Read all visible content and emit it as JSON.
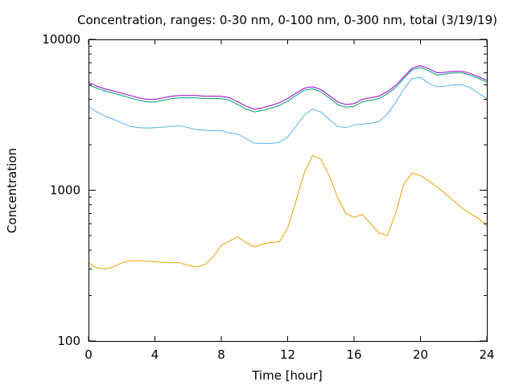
{
  "chart_data": {
    "type": "line",
    "title": "Concentration, ranges: 0-30 nm, 0-100 nm, 0-300 nm, total (3/19/19)",
    "xlabel": "Time [hour]",
    "ylabel": "Concentration",
    "xlim": [
      0,
      24
    ],
    "ylim": [
      100,
      10000
    ],
    "yscale": "log",
    "grid": false,
    "legend": "none",
    "x_ticks": [
      "0",
      "4",
      "8",
      "12",
      "16",
      "20",
      "24"
    ],
    "y_ticks": [
      "100",
      "1000",
      "10000"
    ],
    "x": [
      0,
      0.5,
      1,
      1.5,
      2,
      2.5,
      3,
      3.5,
      4,
      4.5,
      5,
      5.5,
      6,
      6.5,
      7,
      7.5,
      8,
      8.5,
      9,
      9.5,
      10,
      10.5,
      11,
      11.5,
      12,
      12.5,
      13,
      13.5,
      14,
      14.5,
      15,
      15.5,
      16,
      16.5,
      17,
      17.5,
      18,
      18.5,
      19,
      19.5,
      20,
      20.5,
      21,
      21.5,
      22,
      22.5,
      23,
      23.5,
      24
    ],
    "series": [
      {
        "color": "#e6a000",
        "values": [
          330,
          305,
          300,
          310,
          330,
          340,
          340,
          338,
          335,
          332,
          330,
          330,
          318,
          310,
          320,
          360,
          430,
          460,
          490,
          450,
          420,
          440,
          450,
          455,
          560,
          850,
          1300,
          1700,
          1600,
          1250,
          900,
          700,
          660,
          690,
          600,
          520,
          500,
          700,
          1100,
          1300,
          1250,
          1150,
          1050,
          950,
          850,
          760,
          700,
          650,
          580
        ]
      },
      {
        "color": "#56b4e9",
        "values": [
          3600,
          3300,
          3100,
          2950,
          2800,
          2650,
          2600,
          2580,
          2600,
          2620,
          2650,
          2680,
          2600,
          2520,
          2500,
          2480,
          2480,
          2400,
          2350,
          2200,
          2050,
          2040,
          2040,
          2080,
          2250,
          2650,
          3150,
          3450,
          3300,
          2950,
          2650,
          2600,
          2700,
          2750,
          2780,
          2850,
          3200,
          3800,
          4700,
          5500,
          5600,
          5100,
          4850,
          4900,
          5000,
          5000,
          4800,
          4400,
          4050
        ]
      },
      {
        "color": "#009e73",
        "values": [
          5000,
          4750,
          4550,
          4400,
          4250,
          4100,
          3950,
          3850,
          3850,
          3950,
          4050,
          4100,
          4100,
          4100,
          4050,
          4050,
          4050,
          3950,
          3700,
          3450,
          3300,
          3380,
          3500,
          3650,
          3900,
          4250,
          4600,
          4700,
          4500,
          4100,
          3700,
          3550,
          3600,
          3850,
          3950,
          4050,
          4350,
          4800,
          5500,
          6300,
          6500,
          6200,
          5800,
          5900,
          6000,
          6000,
          5800,
          5500,
          5200
        ]
      },
      {
        "color": "#9400d3",
        "values": [
          5200,
          4900,
          4700,
          4550,
          4400,
          4250,
          4100,
          4000,
          4000,
          4100,
          4200,
          4250,
          4250,
          4250,
          4200,
          4200,
          4200,
          4100,
          3850,
          3600,
          3450,
          3520,
          3650,
          3800,
          4050,
          4400,
          4750,
          4850,
          4650,
          4250,
          3850,
          3700,
          3750,
          4000,
          4100,
          4200,
          4500,
          4950,
          5650,
          6450,
          6700,
          6400,
          6000,
          6050,
          6150,
          6150,
          5950,
          5650,
          5350
        ]
      }
    ]
  }
}
